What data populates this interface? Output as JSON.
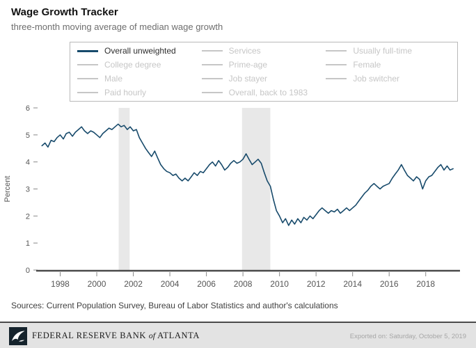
{
  "header": {
    "title": "Wage Growth Tracker",
    "subtitle": "three-month moving average of median wage growth"
  },
  "legend": {
    "items": [
      {
        "label": "Overall unweighted",
        "active": true
      },
      {
        "label": "Services",
        "active": false
      },
      {
        "label": "Usually full-time",
        "active": false
      },
      {
        "label": "College degree",
        "active": false
      },
      {
        "label": "Prime-age",
        "active": false
      },
      {
        "label": "Female",
        "active": false
      },
      {
        "label": "Male",
        "active": false
      },
      {
        "label": "Job stayer",
        "active": false
      },
      {
        "label": "Job switcher",
        "active": false
      },
      {
        "label": "Paid hourly",
        "active": false
      },
      {
        "label": "Overall, back to 1983",
        "active": false
      }
    ]
  },
  "chart_data": {
    "type": "line",
    "title": "Wage Growth Tracker",
    "subtitle": "three-month moving average of median wage growth",
    "xlabel": "",
    "ylabel": "Percent",
    "ylim": [
      0,
      6
    ],
    "yticks": [
      0,
      1,
      2,
      3,
      4,
      5,
      6
    ],
    "xlim": [
      1996.8,
      2019.8
    ],
    "xticks": [
      1998,
      2000,
      2002,
      2004,
      2006,
      2008,
      2010,
      2012,
      2014,
      2016,
      2018
    ],
    "grid": false,
    "legend_position": "top",
    "recession_bands": [
      [
        2001.2,
        2001.8
      ],
      [
        2007.95,
        2009.5
      ]
    ],
    "series": [
      {
        "name": "Overall unweighted",
        "color": "#174a6b",
        "x": [
          1997.0,
          1997.17,
          1997.33,
          1997.5,
          1997.67,
          1997.83,
          1998.0,
          1998.17,
          1998.33,
          1998.5,
          1998.67,
          1998.83,
          1999.0,
          1999.17,
          1999.33,
          1999.5,
          1999.67,
          1999.83,
          2000.0,
          2000.17,
          2000.33,
          2000.5,
          2000.67,
          2000.83,
          2001.0,
          2001.17,
          2001.33,
          2001.5,
          2001.67,
          2001.83,
          2002.0,
          2002.17,
          2002.33,
          2002.5,
          2002.67,
          2002.83,
          2003.0,
          2003.17,
          2003.33,
          2003.5,
          2003.67,
          2003.83,
          2004.0,
          2004.17,
          2004.33,
          2004.5,
          2004.67,
          2004.83,
          2005.0,
          2005.17,
          2005.33,
          2005.5,
          2005.67,
          2005.83,
          2006.0,
          2006.17,
          2006.33,
          2006.5,
          2006.67,
          2006.83,
          2007.0,
          2007.17,
          2007.33,
          2007.5,
          2007.67,
          2007.83,
          2008.0,
          2008.17,
          2008.33,
          2008.5,
          2008.67,
          2008.83,
          2009.0,
          2009.17,
          2009.33,
          2009.5,
          2009.67,
          2009.83,
          2010.0,
          2010.17,
          2010.33,
          2010.5,
          2010.67,
          2010.83,
          2011.0,
          2011.17,
          2011.33,
          2011.5,
          2011.67,
          2011.83,
          2012.0,
          2012.17,
          2012.33,
          2012.5,
          2012.67,
          2012.83,
          2013.0,
          2013.17,
          2013.33,
          2013.5,
          2013.67,
          2013.83,
          2014.0,
          2014.17,
          2014.33,
          2014.5,
          2014.67,
          2014.83,
          2015.0,
          2015.17,
          2015.33,
          2015.5,
          2015.67,
          2015.83,
          2016.0,
          2016.17,
          2016.33,
          2016.5,
          2016.67,
          2016.83,
          2017.0,
          2017.17,
          2017.33,
          2017.5,
          2017.67,
          2017.83,
          2018.0,
          2018.17,
          2018.33,
          2018.5,
          2018.67,
          2018.83,
          2019.0,
          2019.17,
          2019.33,
          2019.5
        ],
        "y": [
          4.6,
          4.7,
          4.55,
          4.8,
          4.75,
          4.9,
          5.0,
          4.85,
          5.05,
          5.1,
          4.95,
          5.1,
          5.2,
          5.3,
          5.15,
          5.05,
          5.15,
          5.1,
          5.0,
          4.9,
          5.05,
          5.15,
          5.25,
          5.2,
          5.3,
          5.4,
          5.3,
          5.35,
          5.2,
          5.3,
          5.15,
          5.2,
          4.9,
          4.7,
          4.5,
          4.35,
          4.2,
          4.4,
          4.15,
          3.9,
          3.75,
          3.65,
          3.6,
          3.5,
          3.55,
          3.4,
          3.3,
          3.4,
          3.3,
          3.45,
          3.6,
          3.5,
          3.65,
          3.6,
          3.75,
          3.9,
          4.0,
          3.85,
          4.05,
          3.9,
          3.7,
          3.8,
          3.95,
          4.05,
          3.95,
          4.0,
          4.1,
          4.3,
          4.1,
          3.9,
          4.0,
          4.1,
          3.95,
          3.6,
          3.3,
          3.1,
          2.6,
          2.2,
          2.0,
          1.75,
          1.9,
          1.65,
          1.85,
          1.7,
          1.9,
          1.75,
          1.95,
          1.85,
          2.0,
          1.9,
          2.05,
          2.2,
          2.3,
          2.2,
          2.1,
          2.2,
          2.15,
          2.25,
          2.1,
          2.2,
          2.3,
          2.2,
          2.3,
          2.4,
          2.55,
          2.7,
          2.85,
          2.95,
          3.1,
          3.2,
          3.1,
          3.0,
          3.1,
          3.15,
          3.2,
          3.4,
          3.55,
          3.7,
          3.9,
          3.7,
          3.5,
          3.4,
          3.3,
          3.45,
          3.35,
          3.0,
          3.3,
          3.45,
          3.5,
          3.65,
          3.8,
          3.9,
          3.7,
          3.85,
          3.7,
          3.75
        ]
      }
    ]
  },
  "sources": "Sources: Current Population Survey, Bureau of Labor Statistics and author's calculations",
  "footer": {
    "bank": "FEDERAL RESERVE BANK",
    "of": "of",
    "city": "ATLANTA",
    "exported": "Exported on:  Saturday, October 5, 2019"
  },
  "colors": {
    "line": "#174a6b",
    "inactive": "#c6c6c6",
    "band": "#e8e8e8",
    "axis": "#4a4a4a",
    "tick_text": "#555555"
  }
}
